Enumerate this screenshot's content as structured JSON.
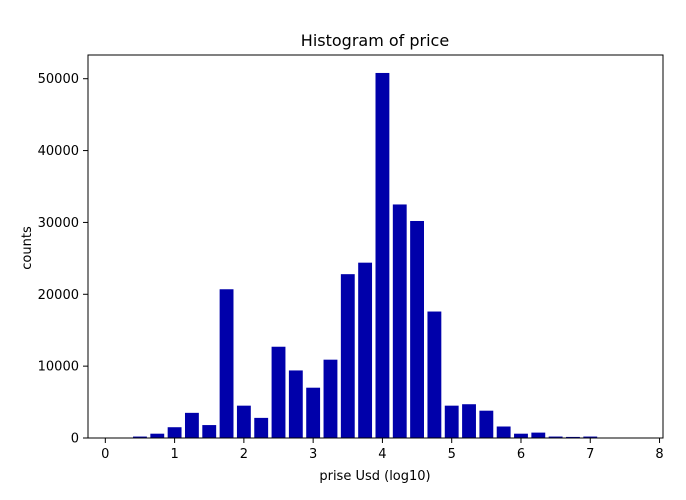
{
  "chart_data": {
    "type": "bar",
    "title": "Histogram of price",
    "xlabel": "prise Usd (log10)",
    "ylabel": "counts",
    "xlim": [
      -0.25,
      8.05
    ],
    "ylim": [
      0,
      53300
    ],
    "xticks": [
      0,
      1,
      2,
      3,
      4,
      5,
      6,
      7,
      8
    ],
    "yticks": [
      0,
      10000,
      20000,
      30000,
      40000,
      50000
    ],
    "bar_width": 0.2,
    "bar_color": "#0000aa",
    "grid": false,
    "bars": [
      {
        "x": 0.0,
        "y": 0
      },
      {
        "x": 0.25,
        "y": 50
      },
      {
        "x": 0.5,
        "y": 200
      },
      {
        "x": 0.75,
        "y": 600
      },
      {
        "x": 1.0,
        "y": 1500
      },
      {
        "x": 1.25,
        "y": 3500
      },
      {
        "x": 1.5,
        "y": 1800
      },
      {
        "x": 1.75,
        "y": 20700
      },
      {
        "x": 2.0,
        "y": 4500
      },
      {
        "x": 2.25,
        "y": 2800
      },
      {
        "x": 2.5,
        "y": 12700
      },
      {
        "x": 2.75,
        "y": 9400
      },
      {
        "x": 3.0,
        "y": 7000
      },
      {
        "x": 3.25,
        "y": 10900
      },
      {
        "x": 3.5,
        "y": 22800
      },
      {
        "x": 3.75,
        "y": 24400
      },
      {
        "x": 4.0,
        "y": 50800
      },
      {
        "x": 4.25,
        "y": 32500
      },
      {
        "x": 4.5,
        "y": 30200
      },
      {
        "x": 4.75,
        "y": 17600
      },
      {
        "x": 5.0,
        "y": 4500
      },
      {
        "x": 5.25,
        "y": 4700
      },
      {
        "x": 5.5,
        "y": 3800
      },
      {
        "x": 5.75,
        "y": 1600
      },
      {
        "x": 6.0,
        "y": 600
      },
      {
        "x": 6.25,
        "y": 750
      },
      {
        "x": 6.5,
        "y": 200
      },
      {
        "x": 6.75,
        "y": 150
      },
      {
        "x": 7.0,
        "y": 200
      },
      {
        "x": 7.25,
        "y": 50
      },
      {
        "x": 7.5,
        "y": 20
      },
      {
        "x": 7.75,
        "y": 10
      }
    ]
  }
}
